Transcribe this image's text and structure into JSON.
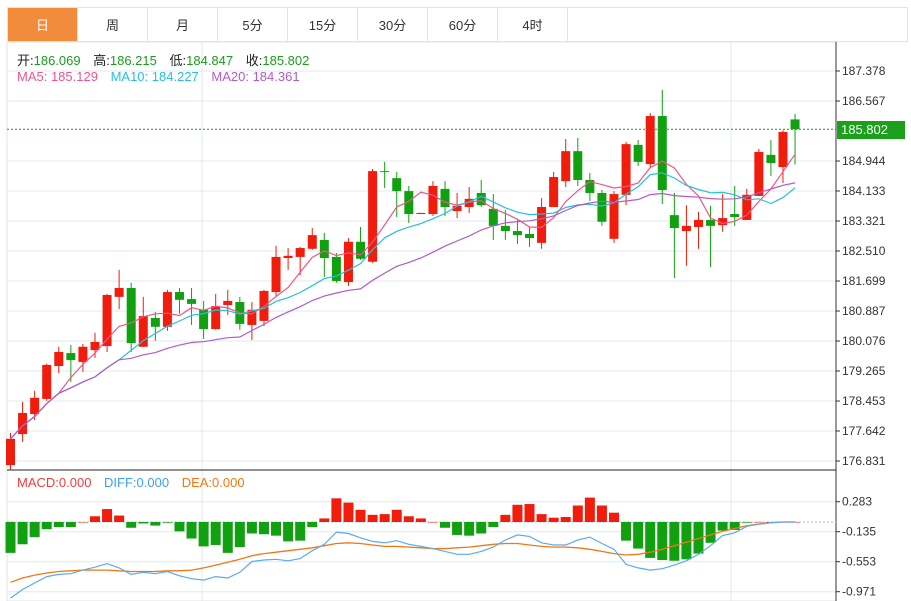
{
  "tabs": [
    {
      "label": "日",
      "active": true
    },
    {
      "label": "周"
    },
    {
      "label": "月"
    },
    {
      "label": "5分"
    },
    {
      "label": "15分"
    },
    {
      "label": "30分"
    },
    {
      "label": "60分"
    },
    {
      "label": "4时"
    }
  ],
  "ohlc_info": {
    "open_label": "开:",
    "open": "186.069",
    "high_label": "高:",
    "high": "186.215",
    "low_label": "低:",
    "low": "184.847",
    "close_label": "收:",
    "close": "185.802"
  },
  "ma_info": {
    "ma5": "MA5: 185.129",
    "ma10": "MA10: 184.227",
    "ma20": "MA20: 184.361"
  },
  "macd_info": {
    "macd": "MACD:0.000",
    "diff": "DIFF:0.000",
    "dea": "DEA:0.000"
  },
  "current_price": "185.802",
  "colors": {
    "up": "#f01c0c",
    "down": "#10a010",
    "ma5": "#f0548c",
    "ma10": "#28c0d8",
    "ma20": "#b45ac8",
    "diff": "#5aaaf0",
    "dea": "#f07814",
    "accent": "#f08c3c"
  },
  "chart_data": [
    {
      "type": "candlestick",
      "title": "",
      "ylim": [
        176.831,
        187.378
      ],
      "y_ticks": [
        "187.378",
        "186.567",
        "184.944",
        "184.133",
        "183.321",
        "182.510",
        "181.699",
        "180.887",
        "180.076",
        "179.265",
        "178.453",
        "177.642",
        "176.831"
      ],
      "moving_averages": [
        5,
        10,
        20
      ],
      "candles": [
        [
          176.72,
          177.59,
          176.59,
          177.43
        ],
        [
          177.56,
          178.43,
          177.35,
          178.13
        ],
        [
          178.1,
          178.73,
          177.94,
          178.54
        ],
        [
          178.51,
          179.46,
          178.46,
          179.43
        ],
        [
          179.4,
          179.92,
          179.21,
          179.78
        ],
        [
          179.75,
          179.97,
          178.97,
          179.56
        ],
        [
          179.51,
          180.0,
          179.24,
          179.92
        ],
        [
          179.83,
          180.3,
          179.62,
          180.05
        ],
        [
          179.94,
          181.35,
          179.78,
          181.32
        ],
        [
          181.27,
          182.0,
          180.94,
          181.51
        ],
        [
          181.51,
          181.65,
          179.78,
          180.02
        ],
        [
          179.92,
          181.27,
          179.92,
          180.75
        ],
        [
          180.7,
          180.86,
          180.08,
          180.46
        ],
        [
          180.46,
          181.46,
          180.35,
          181.4
        ],
        [
          181.4,
          181.51,
          180.81,
          181.19
        ],
        [
          181.21,
          181.51,
          180.51,
          181.08
        ],
        [
          180.92,
          181.16,
          180.13,
          180.4
        ],
        [
          180.4,
          181.35,
          180.38,
          181.02
        ],
        [
          181.05,
          181.46,
          180.78,
          181.16
        ],
        [
          181.13,
          181.27,
          180.38,
          180.54
        ],
        [
          180.51,
          181.13,
          180.1,
          180.92
        ],
        [
          180.62,
          181.46,
          180.48,
          181.43
        ],
        [
          181.4,
          182.65,
          181.3,
          182.35
        ],
        [
          182.32,
          182.59,
          182.0,
          182.38
        ],
        [
          182.35,
          182.62,
          181.86,
          182.59
        ],
        [
          182.57,
          183.13,
          182.54,
          182.94
        ],
        [
          182.81,
          183.0,
          181.81,
          182.32
        ],
        [
          182.35,
          182.46,
          181.65,
          181.7
        ],
        [
          181.67,
          182.86,
          181.57,
          182.76
        ],
        [
          182.76,
          183.16,
          182.27,
          182.3
        ],
        [
          182.22,
          184.73,
          182.19,
          184.67
        ],
        [
          184.67,
          184.92,
          184.21,
          184.65
        ],
        [
          184.48,
          184.65,
          183.43,
          184.13
        ],
        [
          184.13,
          184.27,
          183.27,
          183.51
        ],
        [
          183.51,
          183.54,
          183.51,
          183.54
        ],
        [
          183.51,
          184.4,
          183.46,
          184.27
        ],
        [
          184.19,
          184.4,
          183.46,
          183.7
        ],
        [
          183.59,
          184.08,
          183.4,
          183.73
        ],
        [
          183.7,
          184.24,
          183.54,
          183.92
        ],
        [
          184.08,
          184.43,
          183.7,
          183.75
        ],
        [
          183.65,
          184.05,
          182.81,
          183.19
        ],
        [
          183.19,
          183.62,
          182.81,
          183.05
        ],
        [
          183.05,
          183.35,
          182.7,
          182.94
        ],
        [
          182.97,
          183.16,
          182.62,
          182.86
        ],
        [
          182.73,
          183.94,
          182.57,
          183.7
        ],
        [
          183.7,
          184.65,
          183.7,
          184.51
        ],
        [
          184.4,
          185.54,
          184.24,
          185.21
        ],
        [
          185.21,
          185.57,
          184.27,
          184.43
        ],
        [
          184.43,
          184.62,
          183.86,
          184.08
        ],
        [
          184.08,
          184.16,
          183.19,
          183.3
        ],
        [
          182.84,
          184.13,
          182.73,
          184.05
        ],
        [
          184.03,
          185.46,
          183.75,
          185.4
        ],
        [
          185.38,
          185.51,
          184.81,
          184.92
        ],
        [
          184.86,
          186.24,
          184.75,
          186.16
        ],
        [
          186.16,
          186.87,
          183.78,
          184.16
        ],
        [
          183.48,
          184.08,
          181.78,
          183.13
        ],
        [
          183.05,
          183.75,
          182.11,
          183.19
        ],
        [
          183.16,
          183.57,
          182.57,
          183.35
        ],
        [
          183.35,
          183.73,
          182.08,
          183.19
        ],
        [
          183.21,
          184.05,
          183.03,
          183.4
        ],
        [
          183.51,
          184.27,
          183.19,
          183.43
        ],
        [
          183.35,
          184.19,
          183.35,
          184.03
        ],
        [
          184.0,
          185.27,
          184.0,
          185.19
        ],
        [
          185.11,
          185.51,
          184.54,
          184.89
        ],
        [
          184.78,
          185.78,
          184.35,
          185.73
        ],
        [
          186.069,
          186.215,
          184.847,
          185.802
        ]
      ]
    },
    {
      "type": "bar+line",
      "title": "MACD",
      "ylim": [
        -0.971,
        0.283
      ],
      "y_ticks": [
        "0.283",
        "-0.135",
        "-0.553",
        "-0.971"
      ],
      "histogram": [
        -0.43,
        -0.31,
        -0.21,
        -0.1,
        -0.07,
        -0.07,
        0.0,
        0.08,
        0.18,
        0.09,
        -0.08,
        -0.02,
        -0.05,
        -0.01,
        -0.13,
        -0.23,
        -0.34,
        -0.32,
        -0.43,
        -0.35,
        -0.16,
        -0.17,
        -0.19,
        -0.27,
        -0.26,
        -0.07,
        0.05,
        0.33,
        0.27,
        0.17,
        0.1,
        0.11,
        0.17,
        0.08,
        0.05,
        0.0,
        -0.08,
        -0.18,
        -0.19,
        -0.16,
        -0.07,
        0.1,
        0.24,
        0.25,
        0.11,
        0.06,
        0.07,
        0.23,
        0.34,
        0.23,
        0.13,
        -0.26,
        -0.37,
        -0.5,
        -0.53,
        -0.54,
        -0.52,
        -0.44,
        -0.29,
        -0.12,
        -0.11,
        -0.01,
        0.0,
        0.0,
        0.0,
        0.0
      ],
      "diff": [
        -1.06,
        -0.94,
        -0.85,
        -0.76,
        -0.73,
        -0.72,
        -0.67,
        -0.63,
        -0.58,
        -0.64,
        -0.73,
        -0.7,
        -0.72,
        -0.69,
        -0.75,
        -0.79,
        -0.81,
        -0.76,
        -0.78,
        -0.7,
        -0.55,
        -0.53,
        -0.52,
        -0.54,
        -0.51,
        -0.4,
        -0.31,
        -0.14,
        -0.16,
        -0.22,
        -0.27,
        -0.29,
        -0.26,
        -0.31,
        -0.34,
        -0.37,
        -0.41,
        -0.45,
        -0.45,
        -0.41,
        -0.35,
        -0.25,
        -0.18,
        -0.2,
        -0.29,
        -0.32,
        -0.32,
        -0.25,
        -0.21,
        -0.3,
        -0.38,
        -0.59,
        -0.64,
        -0.67,
        -0.65,
        -0.6,
        -0.54,
        -0.45,
        -0.33,
        -0.19,
        -0.15,
        -0.06,
        -0.03,
        -0.01,
        0.0,
        0.0
      ],
      "dea": [
        -0.84,
        -0.78,
        -0.74,
        -0.71,
        -0.69,
        -0.68,
        -0.67,
        -0.67,
        -0.67,
        -0.68,
        -0.69,
        -0.69,
        -0.69,
        -0.68,
        -0.68,
        -0.67,
        -0.64,
        -0.6,
        -0.56,
        -0.52,
        -0.47,
        -0.44,
        -0.42,
        -0.4,
        -0.38,
        -0.36,
        -0.33,
        -0.3,
        -0.29,
        -0.3,
        -0.32,
        -0.34,
        -0.34,
        -0.35,
        -0.36,
        -0.37,
        -0.37,
        -0.36,
        -0.35,
        -0.33,
        -0.31,
        -0.3,
        -0.3,
        -0.32,
        -0.34,
        -0.35,
        -0.35,
        -0.36,
        -0.38,
        -0.41,
        -0.44,
        -0.46,
        -0.45,
        -0.42,
        -0.38,
        -0.33,
        -0.28,
        -0.23,
        -0.18,
        -0.13,
        -0.09,
        -0.05,
        -0.03,
        -0.01,
        0.0,
        0.0
      ]
    }
  ]
}
